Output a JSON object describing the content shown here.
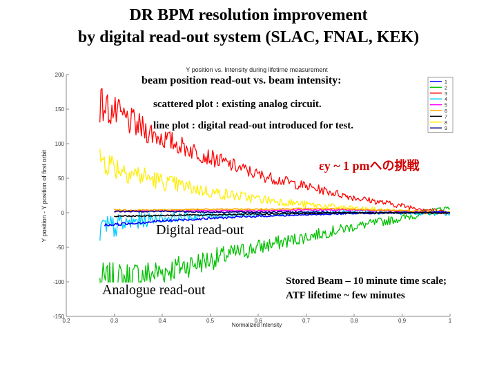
{
  "slide": {
    "title_line1": "DR BPM resolution improvement",
    "title_line2": "by digital read-out system (SLAC, FNAL, KEK)"
  },
  "annotations": {
    "beam_position": "beam position read-out vs. beam intensity:",
    "scattered": "scattered plot : existing analog circuit.",
    "line_plot": "line plot : digital read-out introduced for test.",
    "challenge": "εy ~ 1 pmへの挑戦",
    "digital": "Digital read-out",
    "analogue": "Analogue read-out",
    "stored_beam_1": "Stored Beam – 10 minute time scale;",
    "stored_beam_2": "ATF lifetime ~ few minutes"
  },
  "chart_data": {
    "type": "line",
    "title": "Y position vs. Intensity during lifetime measurement",
    "xlabel": "Normalized Intensity",
    "ylabel": "Y position - Y position of first orbit",
    "xlim": [
      0.2,
      1.0
    ],
    "ylim": [
      -150,
      200
    ],
    "xticks": [
      "0.2",
      "0.3",
      "0.4",
      "0.5",
      "0.6",
      "0.7",
      "0.8",
      "0.9",
      "1"
    ],
    "yticks": [
      "-150",
      "-100",
      "-50",
      "0",
      "50",
      "100",
      "150",
      "200"
    ],
    "legend_position": "top-right",
    "grid": false,
    "series": [
      {
        "name": "1",
        "color": "#0000ff",
        "x": [
          0.28,
          0.4,
          0.5,
          0.6,
          0.7,
          0.8,
          0.9,
          1.0
        ],
        "y": [
          -18,
          -12,
          -8,
          -5,
          -3,
          -1,
          0,
          1
        ],
        "amp": [
          2,
          2,
          1.5,
          1.5,
          1,
          1,
          1,
          1
        ]
      },
      {
        "name": "2",
        "color": "#00c000",
        "x": [
          0.27,
          0.3,
          0.35,
          0.4,
          0.5,
          0.6,
          0.7,
          0.8,
          0.9,
          0.95,
          1.0
        ],
        "y": [
          -100,
          -98,
          -92,
          -85,
          -68,
          -50,
          -35,
          -20,
          -8,
          0,
          8
        ],
        "amp": [
          28,
          26,
          24,
          20,
          16,
          12,
          9,
          7,
          6,
          5,
          5
        ]
      },
      {
        "name": "3",
        "color": "#ff0000",
        "x": [
          0.27,
          0.3,
          0.35,
          0.4,
          0.5,
          0.6,
          0.7,
          0.8,
          0.9,
          0.95,
          1.0
        ],
        "y": [
          158,
          145,
          125,
          108,
          80,
          55,
          38,
          22,
          10,
          5,
          0
        ],
        "amp": [
          28,
          24,
          20,
          16,
          12,
          9,
          7,
          5,
          4,
          3,
          3
        ]
      },
      {
        "name": "4",
        "color": "#00ccff",
        "x": [
          0.27,
          0.3,
          0.35,
          0.4,
          0.5,
          0.6,
          0.7,
          0.8,
          0.9,
          1.0
        ],
        "y": [
          -25,
          -20,
          -12,
          -8,
          -4,
          -2,
          0,
          1,
          0,
          -2
        ],
        "amp": [
          22,
          18,
          12,
          8,
          5,
          4,
          3,
          3,
          3,
          3
        ]
      },
      {
        "name": "5",
        "color": "#ff00ff",
        "x": [
          0.3,
          0.4,
          0.5,
          0.6,
          0.7,
          0.8,
          0.9,
          1.0
        ],
        "y": [
          2,
          3,
          3,
          3,
          4,
          4,
          2,
          0
        ],
        "amp": [
          1,
          1,
          1,
          1,
          1,
          1,
          1,
          1
        ]
      },
      {
        "name": "6",
        "color": "#ffa500",
        "x": [
          0.3,
          0.4,
          0.5,
          0.6,
          0.7,
          0.8,
          0.9,
          1.0
        ],
        "y": [
          4,
          4,
          5,
          5,
          6,
          5,
          3,
          1
        ],
        "amp": [
          1,
          1,
          1,
          1,
          1,
          1,
          1,
          1
        ]
      },
      {
        "name": "7",
        "color": "#000000",
        "x": [
          0.3,
          0.4,
          0.5,
          0.6,
          0.7,
          0.8,
          0.9,
          1.0
        ],
        "y": [
          -5,
          -4,
          -3,
          -2,
          -1,
          0,
          0,
          0
        ],
        "amp": [
          1,
          1,
          1,
          1,
          1,
          1,
          1,
          1
        ]
      },
      {
        "name": "8",
        "color": "#ffee00",
        "x": [
          0.27,
          0.3,
          0.35,
          0.4,
          0.5,
          0.6,
          0.7,
          0.8,
          0.9,
          1.0
        ],
        "y": [
          80,
          68,
          55,
          45,
          30,
          20,
          12,
          6,
          2,
          0
        ],
        "amp": [
          22,
          20,
          16,
          13,
          9,
          7,
          5,
          4,
          3,
          3
        ]
      },
      {
        "name": "9",
        "color": "#000080",
        "x": [
          0.3,
          0.4,
          0.5,
          0.6,
          0.7,
          0.8,
          0.9,
          1.0
        ],
        "y": [
          2,
          2,
          1,
          1,
          1,
          0,
          0,
          0
        ],
        "amp": [
          1,
          1,
          1,
          1,
          1,
          1,
          1,
          1
        ]
      }
    ]
  }
}
